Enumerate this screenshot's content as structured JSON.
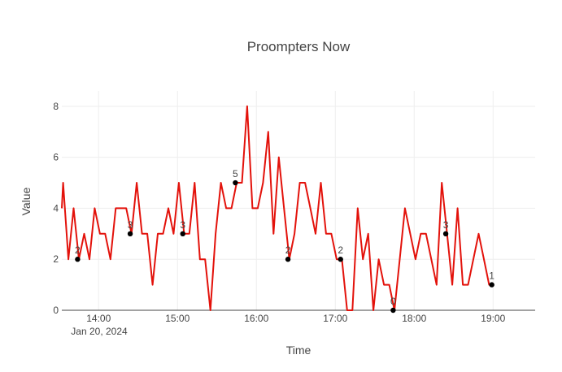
{
  "chart_data": {
    "type": "line",
    "title": "Proompters Now",
    "xlabel": "Time",
    "ylabel": "Value",
    "date_label": "Jan 20, 2024",
    "x_ticks": [
      "14:00",
      "15:00",
      "16:00",
      "17:00",
      "18:00",
      "19:00"
    ],
    "y_ticks": [
      0,
      2,
      4,
      6,
      8
    ],
    "xlim": [
      "13:32",
      "19:32"
    ],
    "ylim": [
      0,
      8.6
    ],
    "grid": true,
    "colors": {
      "line": "#e3120b",
      "marker": "#000000",
      "grid": "#eeeeee",
      "axis": "#444444",
      "text": "#444444"
    },
    "series": [
      {
        "x": [
          "13:32",
          "13:33",
          "13:37",
          "13:41",
          "13:45",
          "13:49",
          "13:53",
          "13:57",
          "14:01",
          "14:05",
          "14:09",
          "14:13",
          "14:17",
          "14:21",
          "14:25",
          "14:29",
          "14:33",
          "14:37",
          "14:41",
          "14:45",
          "14:49",
          "14:53",
          "14:57",
          "15:01",
          "15:05",
          "15:09",
          "15:13",
          "15:17",
          "15:21",
          "15:25",
          "15:29",
          "15:33",
          "15:37",
          "15:41",
          "15:45",
          "15:49",
          "15:53",
          "15:57",
          "16:01",
          "16:05",
          "16:09",
          "16:13",
          "16:17",
          "16:21",
          "16:25",
          "16:29",
          "16:33",
          "16:37",
          "16:41",
          "16:45",
          "16:49",
          "16:53",
          "16:57",
          "17:01",
          "17:05",
          "17:09",
          "17:13",
          "17:17",
          "17:21",
          "17:25",
          "17:29",
          "17:33",
          "17:37",
          "17:41",
          "17:45",
          "17:49",
          "17:53",
          "17:57",
          "18:01",
          "18:05",
          "18:09",
          "18:13",
          "18:17",
          "18:21",
          "18:25",
          "18:29",
          "18:33",
          "18:37",
          "18:41",
          "18:45",
          "18:49",
          "18:53",
          "18:57",
          "18:59"
        ],
        "values": [
          4,
          5,
          2,
          4,
          2,
          3,
          2,
          4,
          3,
          3,
          2,
          4,
          4,
          4,
          3,
          5,
          3,
          3,
          1,
          3,
          3,
          4,
          3,
          5,
          3,
          3,
          5,
          2,
          2,
          0,
          3,
          5,
          4,
          4,
          5,
          5,
          8,
          4,
          4,
          5,
          7,
          3,
          6,
          4,
          2,
          3,
          5,
          5,
          4,
          3,
          5,
          3,
          3,
          2,
          2,
          0,
          0,
          4,
          2,
          3,
          0,
          2,
          1,
          1,
          0,
          2,
          4,
          3,
          2,
          3,
          3,
          2,
          1,
          5,
          3,
          1,
          4,
          1,
          1,
          2,
          3,
          2,
          1,
          1
        ]
      }
    ],
    "markers": [
      {
        "x": "13:44",
        "y": 2,
        "label": "2"
      },
      {
        "x": "14:24",
        "y": 3,
        "label": "3"
      },
      {
        "x": "15:04",
        "y": 3,
        "label": "3"
      },
      {
        "x": "15:44",
        "y": 5,
        "label": "5"
      },
      {
        "x": "16:24",
        "y": 2,
        "label": "2"
      },
      {
        "x": "17:04",
        "y": 2,
        "label": "2"
      },
      {
        "x": "17:44",
        "y": 0,
        "label": "0"
      },
      {
        "x": "18:24",
        "y": 3,
        "label": "3"
      },
      {
        "x": "18:59",
        "y": 1,
        "label": "1"
      }
    ]
  }
}
